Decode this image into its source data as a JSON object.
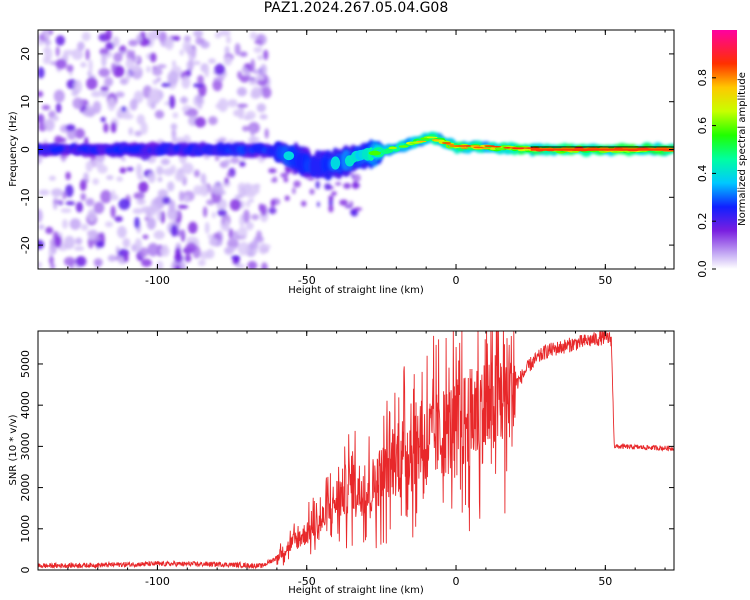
{
  "title": "PAZ1.2024.267.05.04.G08",
  "colors": {
    "snr_line": "#e8282a",
    "axis": "#000000"
  },
  "chart_data": [
    {
      "type": "heatmap",
      "xlabel": "Height of straight line (km)",
      "ylabel": "Frequency (Hz)",
      "xlim": [
        -140,
        73
      ],
      "ylim": [
        -25,
        25
      ],
      "xticks": [
        -100,
        -50,
        0,
        50
      ],
      "xtick_labels": [
        "-100",
        "-50",
        "0",
        "50"
      ],
      "yticks": [
        -20,
        -10,
        0,
        10,
        20
      ],
      "ytick_labels": [
        "-20",
        "-10",
        "0",
        "10",
        "20"
      ],
      "colorbar": {
        "label": "Normalized spectral amplitude",
        "range": [
          0,
          1
        ],
        "ticks": [
          0.0,
          0.2,
          0.4,
          0.6,
          0.8
        ],
        "tick_labels": [
          "0.0",
          "0.2",
          "0.4",
          "0.6",
          "0.8"
        ],
        "colormap": "rainbow-white-to-magenta"
      },
      "ridge": [
        {
          "x": -140,
          "y": 0.0,
          "amp": 0.25
        },
        {
          "x": -100,
          "y": 0.0,
          "amp": 0.25
        },
        {
          "x": -63,
          "y": 0.0,
          "amp": 0.3
        },
        {
          "x": -55,
          "y": -1.5,
          "amp": 0.35
        },
        {
          "x": -48,
          "y": -3.5,
          "amp": 0.3
        },
        {
          "x": -40,
          "y": -3.0,
          "amp": 0.35
        },
        {
          "x": -30,
          "y": -1.0,
          "amp": 0.45
        },
        {
          "x": -20,
          "y": 0.3,
          "amp": 0.6
        },
        {
          "x": -8,
          "y": 2.5,
          "amp": 0.7
        },
        {
          "x": 0,
          "y": 0.5,
          "amp": 0.8
        },
        {
          "x": 10,
          "y": 0.5,
          "amp": 0.75
        },
        {
          "x": 25,
          "y": 0.0,
          "amp": 0.85
        },
        {
          "x": 73,
          "y": 0.0,
          "amp": 0.9
        }
      ],
      "noise_region_x": [
        -140,
        -63
      ]
    },
    {
      "type": "line",
      "xlabel": "Height of straight line (km)",
      "ylabel": "SNR (10 * v/v)",
      "xlim": [
        -140,
        73
      ],
      "ylim": [
        0,
        5800
      ],
      "xticks": [
        -100,
        -50,
        0,
        50
      ],
      "xtick_labels": [
        "-100",
        "-50",
        "0",
        "50"
      ],
      "yticks": [
        0,
        1000,
        2000,
        3000,
        4000,
        5000
      ],
      "ytick_labels": [
        "0",
        "1000",
        "2000",
        "3000",
        "4000",
        "5000"
      ],
      "series": [
        {
          "x": [
            -140,
            -120,
            -100,
            -80,
            -65,
            -60,
            -55,
            -50,
            -45,
            -40,
            -35,
            -30,
            -25,
            -20,
            -15,
            -10,
            -5,
            0,
            10,
            20,
            25,
            30,
            40,
            50,
            52,
            53,
            73
          ],
          "y": [
            100,
            120,
            150,
            140,
            100,
            300,
            650,
            900,
            1200,
            1700,
            2100,
            1900,
            2300,
            2700,
            3000,
            3200,
            3300,
            3500,
            3900,
            4500,
            5000,
            5300,
            5500,
            5650,
            5600,
            3000,
            2950
          ]
        }
      ]
    }
  ]
}
